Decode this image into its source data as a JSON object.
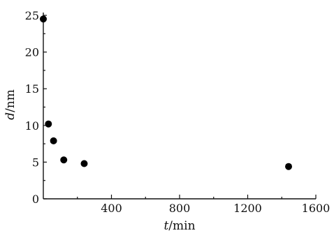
{
  "chart_data": {
    "type": "scatter",
    "xlabel": {
      "var": "t",
      "unit": "/min"
    },
    "ylabel": {
      "var": "d",
      "unit": "/nm"
    },
    "xlim": [
      0,
      1600
    ],
    "ylim": [
      0,
      25
    ],
    "xticks": [
      0,
      400,
      800,
      1200,
      1600
    ],
    "xtick_labels": [
      "400",
      "800",
      "1200",
      "1600"
    ],
    "yticks": [
      0,
      5,
      10,
      15,
      20,
      25
    ],
    "ytick_labels": [
      "0",
      "5",
      "10",
      "15",
      "20",
      "25"
    ],
    "grid": false,
    "legend": "none",
    "series": [
      {
        "x": [
          0,
          30,
          60,
          120,
          240,
          1440
        ],
        "y": [
          24.5,
          10.2,
          7.9,
          5.3,
          4.8,
          4.4
        ]
      }
    ],
    "marker_color": "#000000"
  }
}
